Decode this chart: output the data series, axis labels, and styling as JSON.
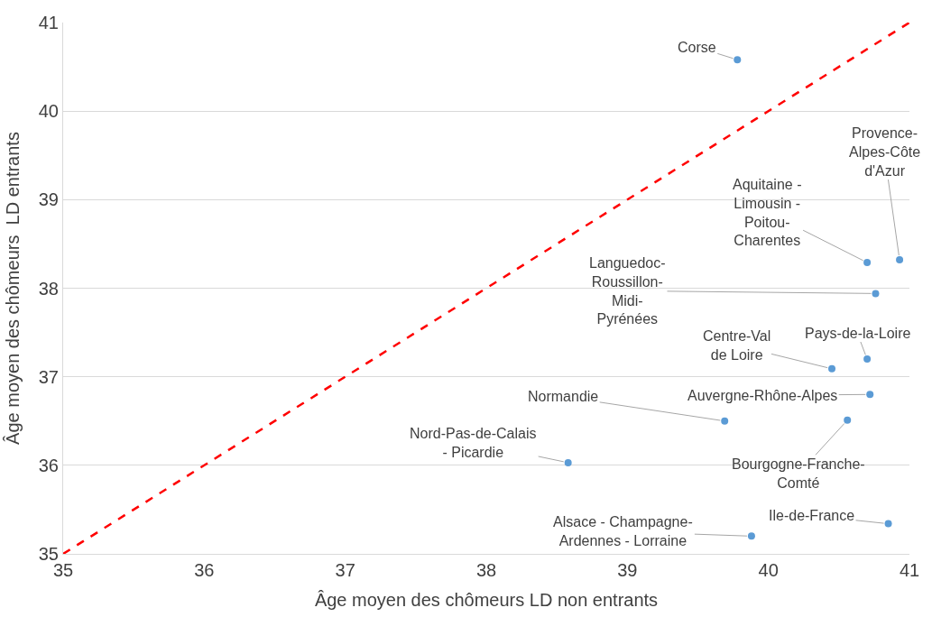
{
  "chart_data": {
    "type": "scatter",
    "xlabel": "Âge moyen des chômeurs LD non entrants",
    "ylabel": "Âge moyen des chômeurs  LD entrants",
    "xlim": [
      35,
      41
    ],
    "xticks": [
      35,
      36,
      37,
      38,
      39,
      40,
      41
    ],
    "ylim": [
      35,
      41
    ],
    "yticks": [
      35,
      36,
      37,
      38,
      39,
      40,
      41
    ],
    "grid": "y",
    "series": [
      {
        "marker": "circle",
        "color": "#5b9bd5",
        "x": [
          39.78,
          40.93,
          40.7,
          40.76,
          40.7,
          40.45,
          40.72,
          40.56,
          39.69,
          38.58,
          40.85,
          39.88
        ],
        "values": [
          40.58,
          38.32,
          38.29,
          37.94,
          37.2,
          37.09,
          36.8,
          36.51,
          36.5,
          36.03,
          35.34,
          35.2
        ]
      },
      {
        "type": "line",
        "color": "#ff0000",
        "line_style": "dashed",
        "x": [
          35,
          41
        ],
        "values": [
          35,
          41
        ]
      }
    ],
    "annotations": [
      {
        "text": "Corse",
        "x": 39.78,
        "y": 40.58
      },
      {
        "text": "Provence-\nAlpes-Côte\nd'Azur",
        "x": 40.93,
        "y": 38.32
      },
      {
        "text": "Aquitaine -\nLimousin -\nPoitou-\nCharentes",
        "x": 40.7,
        "y": 38.29
      },
      {
        "text": "Languedoc-\nRoussillon-\nMidi-\nPyrénées",
        "x": 40.76,
        "y": 37.94
      },
      {
        "text": "Pays-de-la-Loire",
        "x": 40.7,
        "y": 37.2
      },
      {
        "text": "Centre-Val\nde Loire",
        "x": 40.45,
        "y": 37.09
      },
      {
        "text": "Auvergne-Rhône-Alpes",
        "x": 40.72,
        "y": 36.8
      },
      {
        "text": "Bourgogne-Franche-\nComté",
        "x": 40.56,
        "y": 36.51
      },
      {
        "text": "Normandie",
        "x": 39.69,
        "y": 36.5
      },
      {
        "text": "Nord-Pas-de-Calais\n- Picardie",
        "x": 38.58,
        "y": 36.03
      },
      {
        "text": "Ile-de-France",
        "x": 40.85,
        "y": 35.34
      },
      {
        "text": "Alsace - Champagne-\nArdennes - Lorraine",
        "x": 39.88,
        "y": 35.2
      }
    ]
  }
}
